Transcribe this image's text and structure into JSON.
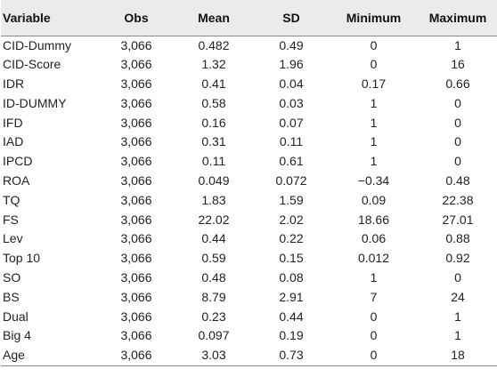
{
  "table": {
    "headers": [
      "Variable",
      "Obs",
      "Mean",
      "SD",
      "Minimum",
      "Maximum"
    ],
    "rows": [
      [
        "CID-Dummy",
        "3,066",
        "0.482",
        "0.49",
        "0",
        "1"
      ],
      [
        "CID-Score",
        "3,066",
        "1.32",
        "1.96",
        "0",
        "16"
      ],
      [
        "IDR",
        "3,066",
        "0.41",
        "0.04",
        "0.17",
        "0.66"
      ],
      [
        "ID-DUMMY",
        "3,066",
        "0.58",
        "0.03",
        "1",
        "0"
      ],
      [
        "IFD",
        "3,066",
        "0.16",
        "0.07",
        "1",
        "0"
      ],
      [
        "IAD",
        "3,066",
        "0.31",
        "0.11",
        "1",
        "0"
      ],
      [
        "IPCD",
        "3,066",
        "0.11",
        "0.61",
        "1",
        "0"
      ],
      [
        "ROA",
        "3,066",
        "0.049",
        "0.072",
        "−0.34",
        "0.48"
      ],
      [
        "TQ",
        "3,066",
        "1.83",
        "1.59",
        "0.09",
        "22.38"
      ],
      [
        "FS",
        "3,066",
        "22.02",
        "2.02",
        "18.66",
        "27.01"
      ],
      [
        "Lev",
        "3,066",
        "0.44",
        "0.22",
        "0.06",
        "0.88"
      ],
      [
        "Top 10",
        "3,066",
        "0.59",
        "0.15",
        "0.012",
        "0.92"
      ],
      [
        "SO",
        "3,066",
        "0.48",
        "0.08",
        "1",
        "0"
      ],
      [
        "BS",
        "3,066",
        "8.79",
        "2.91",
        "7",
        "24"
      ],
      [
        "Dual",
        "3,066",
        "0.23",
        "0.44",
        "0",
        "1"
      ],
      [
        "Big 4",
        "3,066",
        "0.097",
        "0.19",
        "0",
        "1"
      ],
      [
        "Age",
        "3,066",
        "3.03",
        "0.73",
        "0",
        "18"
      ]
    ]
  }
}
